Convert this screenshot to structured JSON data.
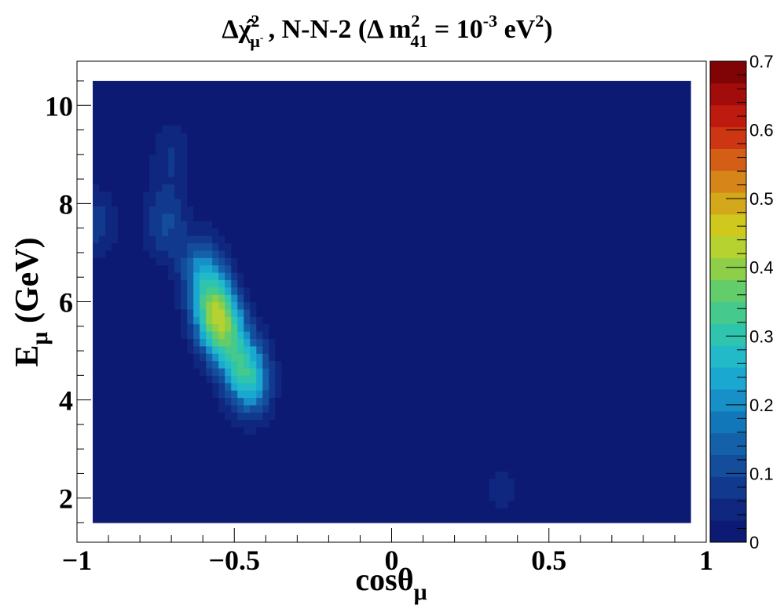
{
  "chart_data": {
    "type": "heatmap",
    "title": {
      "prefix": "Δχ̂",
      "sup": "2",
      "sub": "μ",
      "sub_sup": "-",
      "middle": ", N-N-2 (Δ m",
      "m_sup": "2",
      "m_sub": "41",
      "equals": " = 10",
      "exp": "-3",
      "unit": " eV",
      "unit_sup": "2",
      "close": ")"
    },
    "xlabel": {
      "main": "cosθ",
      "sub": "μ"
    },
    "ylabel": {
      "main": "E",
      "sub": "μ",
      "rest": " (GeV)"
    },
    "xlim": [
      -1,
      1
    ],
    "ylim": [
      1.1,
      10.9
    ],
    "data_x_range": [
      -0.95,
      0.95
    ],
    "data_y_range": [
      1.5,
      10.5
    ],
    "x_ticks": [
      -1,
      -0.5,
      0,
      0.5,
      1
    ],
    "x_tick_labels": [
      "−1",
      "−0.5",
      "0",
      "0.5",
      "1"
    ],
    "y_ticks": [
      2,
      4,
      6,
      8,
      10
    ],
    "y_tick_labels": [
      "2",
      "4",
      "6",
      "8",
      "10"
    ],
    "colorbar": {
      "min": 0,
      "max": 0.7,
      "levels": 20,
      "ticks": [
        0,
        0.1,
        0.2,
        0.3,
        0.4,
        0.5,
        0.6,
        0.7
      ],
      "tick_labels": [
        "0",
        "0.1",
        "0.2",
        "0.3",
        "0.4",
        "0.5",
        "0.6",
        "0.7"
      ],
      "colors": [
        "#0d1a73",
        "#0f277f",
        "#113a8e",
        "#134d9c",
        "#1461aa",
        "#1277b9",
        "#1790c8",
        "#1aa8d1",
        "#22bac8",
        "#2fc4ad",
        "#45c98c",
        "#63cc6b",
        "#8dcf48",
        "#b5d230",
        "#cfc91e",
        "#d3a81a",
        "#d68518",
        "#d45e16",
        "#cd3612",
        "#bf1a10",
        "#a20c0a",
        "#800305"
      ]
    },
    "hotspots": [
      {
        "x": -0.555,
        "y": 5.7,
        "value": 0.38
      },
      {
        "x": -0.45,
        "y": 4.4,
        "value": 0.24
      },
      {
        "x": -0.6,
        "y": 6.6,
        "value": 0.19
      },
      {
        "x": -0.72,
        "y": 7.6,
        "value": 0.11
      },
      {
        "x": -0.94,
        "y": 7.6,
        "value": 0.09
      },
      {
        "x": -0.5,
        "y": 5.0,
        "value": 0.17
      },
      {
        "x": -0.7,
        "y": 9.0,
        "value": 0.07
      },
      {
        "x": 0.35,
        "y": 2.2,
        "value": 0.045
      }
    ]
  }
}
